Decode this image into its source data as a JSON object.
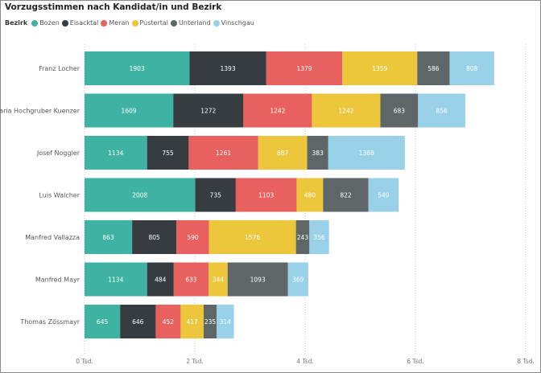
{
  "chart_data": {
    "type": "bar",
    "orientation": "horizontal",
    "stacked": true,
    "title": "Vorzugsstimmen nach Kandidat/in und Bezirk",
    "legend_title": "Bezirk",
    "legend_position": "top-left",
    "grid": true,
    "xlim": [
      0,
      8000
    ],
    "x_ticks": [
      0,
      2000,
      4000,
      6000,
      8000
    ],
    "x_tick_labels": [
      "0 Tsd.",
      "2 Tsd.",
      "4 Tsd.",
      "6 Tsd.",
      "8 Tsd."
    ],
    "categories": [
      "Franz Locher",
      "Maria Hochgruber Kuenzer",
      "Josef Noggler",
      "Luis Walcher",
      "Manfred Vallazza",
      "Manfred Mayr",
      "Thomas Zössmayr"
    ],
    "series": [
      {
        "name": "Bozen",
        "color": "#3fb3a3",
        "label_color": "#ffffff",
        "values": [
          1903,
          1609,
          1134,
          2008,
          863,
          1134,
          645
        ]
      },
      {
        "name": "Eisacktal",
        "color": "#363c40",
        "label_color": "#ffffff",
        "values": [
          1393,
          1272,
          755,
          735,
          805,
          484,
          646
        ]
      },
      {
        "name": "Meran",
        "color": "#e8615e",
        "label_color": "#ffffff",
        "values": [
          1379,
          1242,
          1261,
          1103,
          590,
          633,
          452
        ]
      },
      {
        "name": "Pustertal",
        "color": "#ecc73c",
        "label_color": "#ffffff",
        "values": [
          1359,
          1242,
          887,
          480,
          1576,
          344,
          417
        ]
      },
      {
        "name": "Unterland",
        "color": "#5e6668",
        "label_color": "#ffffff",
        "values": [
          586,
          683,
          383,
          822,
          243,
          1093,
          235
        ]
      },
      {
        "name": "Vinschgau",
        "color": "#98d1e8",
        "label_color": "#ffffff",
        "values": [
          808,
          856,
          1388,
          549,
          356,
          369,
          314
        ]
      }
    ]
  }
}
